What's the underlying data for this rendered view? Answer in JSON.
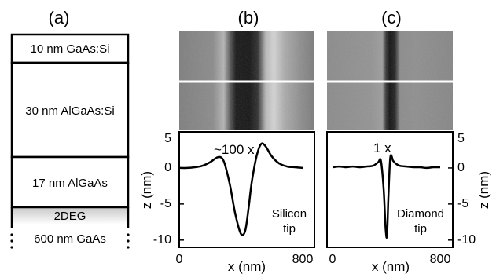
{
  "panels": {
    "a": "(a)",
    "b": "(b)",
    "c": "(c)"
  },
  "layer_stack": {
    "layers": [
      {
        "label": "10 nm GaAs:Si"
      },
      {
        "label": "30 nm AlGaAs:Si"
      },
      {
        "label": "17 nm AlGaAs"
      },
      {
        "label": "2DEG"
      },
      {
        "label": "600 nm GaAs"
      }
    ]
  },
  "chart_data": [
    {
      "type": "line",
      "panel": "(b)",
      "xlabel": "x (nm)",
      "ylabel": "z (nm)",
      "xlim": [
        0,
        800
      ],
      "ylim": [
        -11,
        5
      ],
      "x_ticks": [
        "0",
        "800"
      ],
      "y_ticks": [
        "5",
        "0",
        "-5",
        "-10"
      ],
      "annotation": "~100 x",
      "tip_label": [
        "Silicon",
        "tip"
      ],
      "series": [
        {
          "x": [
            0,
            50,
            100,
            150,
            200,
            250,
            280,
            300,
            330,
            360,
            390,
            410,
            430,
            450,
            470,
            500,
            530,
            560,
            600,
            650,
            700,
            750,
            800
          ],
          "y": [
            0,
            0,
            0.1,
            0.3,
            0.8,
            1.5,
            1.3,
            0.2,
            -2.5,
            -6,
            -8.6,
            -9.3,
            -8.5,
            -5.5,
            -2,
            1.5,
            3.3,
            3.0,
            1.6,
            0.6,
            0.2,
            0.1,
            0
          ]
        }
      ]
    },
    {
      "type": "line",
      "panel": "(c)",
      "xlabel": "x (nm)",
      "ylabel": "z (nm)",
      "xlim": [
        0,
        800
      ],
      "ylim": [
        -11,
        5
      ],
      "x_ticks": [
        "0",
        "800"
      ],
      "y_ticks": [
        "5",
        "0",
        "-5",
        "-10"
      ],
      "annotation": "1 x",
      "tip_label": [
        "Diamond",
        "tip"
      ],
      "series": [
        {
          "x": [
            0,
            50,
            100,
            150,
            200,
            250,
            300,
            340,
            360,
            380,
            395,
            405,
            415,
            430,
            450,
            470,
            500,
            550,
            600,
            650,
            700,
            750,
            800
          ],
          "y": [
            0.1,
            0.2,
            0.1,
            0.2,
            0.1,
            0.2,
            0.3,
            0.8,
            1.0,
            -3,
            -8.5,
            -9.3,
            -4,
            1.5,
            1.0,
            0.6,
            0.3,
            0.2,
            0.1,
            0.1,
            0.0,
            0.1,
            0.1
          ]
        }
      ]
    }
  ]
}
